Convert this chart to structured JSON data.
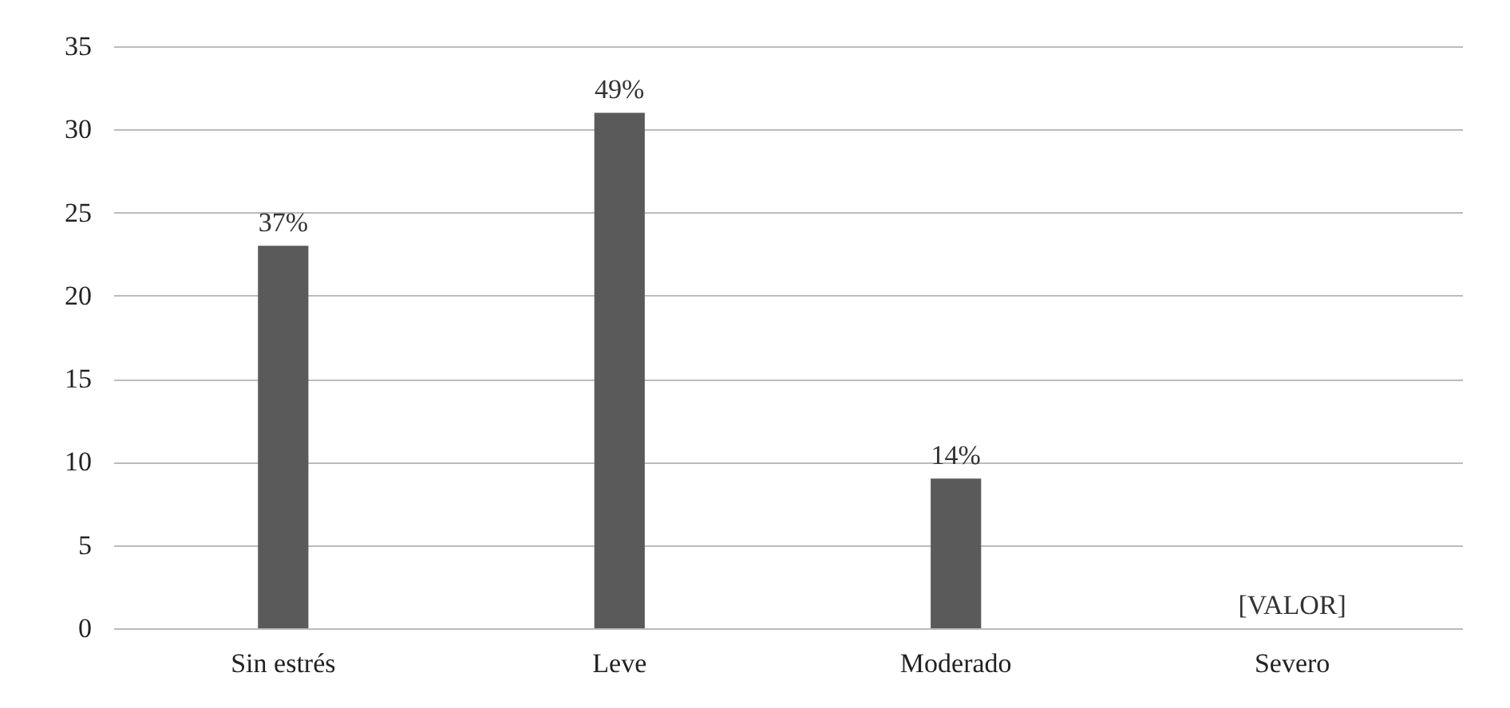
{
  "chart_data": {
    "type": "bar",
    "categories": [
      "Sin estrés",
      "Leve",
      "Moderado",
      "Severo"
    ],
    "values": [
      23,
      31,
      9,
      0
    ],
    "color": "#5a5a5a",
    "annotations": [
      {
        "text": "37%",
        "x": "Sin estrés",
        "y": 23
      },
      {
        "text": "49%",
        "x": "Leve",
        "y": 31
      },
      {
        "text": "14%",
        "x": "Moderado",
        "y": 9
      },
      {
        "text": "[VALOR]",
        "x": "Severo",
        "y": 0
      }
    ],
    "ylim": [
      0,
      35
    ],
    "yticks": [
      0,
      5,
      10,
      15,
      20,
      25,
      30,
      35
    ],
    "grid": "y"
  }
}
